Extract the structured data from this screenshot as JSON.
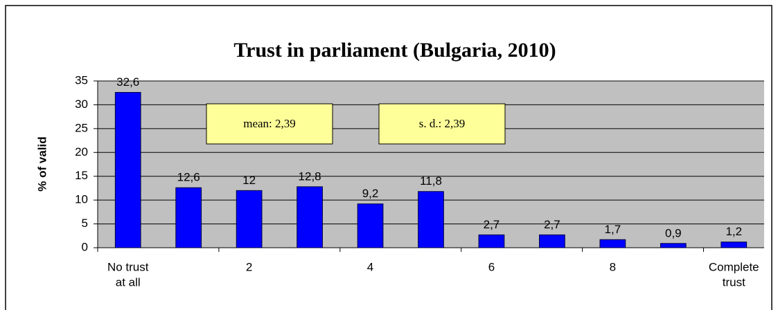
{
  "chart_data": {
    "type": "bar",
    "title": "Trust in parliament (Bulgaria, 2010)",
    "y_label": "% of valid",
    "categories": [
      [
        "No trust",
        "at all"
      ],
      null,
      "2",
      null,
      "4",
      null,
      "6",
      null,
      "8",
      null,
      [
        "Complete",
        "trust"
      ]
    ],
    "values": [
      32.6,
      12.6,
      12,
      12.8,
      9.2,
      11.8,
      2.7,
      2.7,
      1.7,
      0.9,
      1.2
    ],
    "value_labels": [
      "32,6",
      "12,6",
      "12",
      "12,8",
      "9,2",
      "11,8",
      "2,7",
      "2,7",
      "1,7",
      "0,9",
      "1,2"
    ],
    "color": "#0000ff",
    "ylim": [
      0,
      35
    ],
    "yticks": [
      0,
      5,
      10,
      15,
      20,
      25,
      30,
      35
    ],
    "grid": true,
    "annotations": [
      "mean: 2,39",
      "s. d.: 2,39"
    ]
  }
}
